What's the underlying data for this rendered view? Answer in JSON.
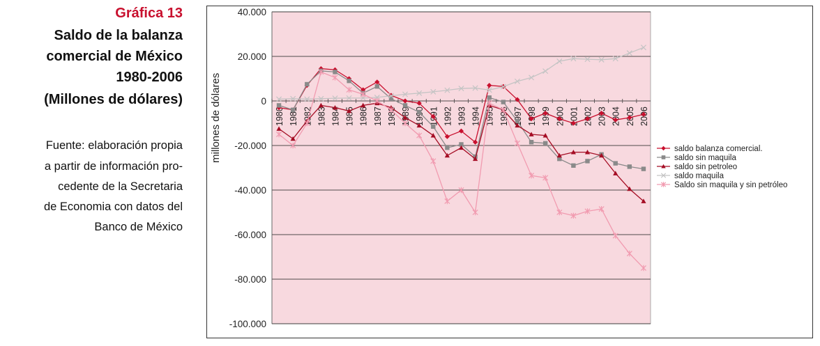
{
  "figure": {
    "label": "Gráfica 13",
    "title_lines": [
      "Saldo de la balanza",
      "comercial de México",
      "1980-2006",
      "(Millones de dólares)"
    ],
    "source_lines": [
      "Fuente: elaboración propia",
      "a partir de información pro-",
      "cedente de la Secretaria",
      "de Economia con datos del",
      "Banco de México"
    ]
  },
  "chart_data": {
    "type": "line",
    "title": "",
    "xlabel": "",
    "ylabel": "millones de dólares",
    "ylim": [
      -100000,
      40000
    ],
    "y_ticks": [
      40000,
      20000,
      0,
      -20000,
      -40000,
      -60000,
      -80000,
      -100000
    ],
    "y_tick_labels": [
      "40.000",
      "20.000",
      "0",
      "-20.000",
      "-40.000",
      "-60.000",
      "-80.000",
      "-100.000"
    ],
    "grid": true,
    "legend_position": "right",
    "plot_background": "#f8d9df",
    "categories": [
      "1980",
      "1981",
      "1982",
      "1983",
      "1984",
      "1985",
      "1986",
      "1987",
      "1988",
      "1989",
      "1990",
      "1991",
      "1992",
      "1993",
      "1994",
      "1995",
      "1996",
      "1997",
      "1998",
      "1999",
      "2000",
      "2001",
      "2002",
      "2003",
      "2004",
      "2005",
      "2006"
    ],
    "series": [
      {
        "name": "saldo balanza comercial.",
        "color": "#c8102e",
        "marker": "diamond",
        "values": [
          -3000,
          -4000,
          7000,
          14500,
          14000,
          10000,
          5000,
          8500,
          2500,
          0,
          -1000,
          -7000,
          -16000,
          -13500,
          -18500,
          7000,
          6500,
          600,
          -8000,
          -5500,
          -8000,
          -10000,
          -8000,
          -5500,
          -8500,
          -7500,
          -6000
        ]
      },
      {
        "name": "saldo sin maquila",
        "color": "#8a8a8a",
        "marker": "square",
        "values": [
          -2000,
          -4000,
          7500,
          13500,
          13000,
          9000,
          3500,
          6500,
          1000,
          -2000,
          -5000,
          -11500,
          -21000,
          -19500,
          -25000,
          1500,
          -500,
          -9000,
          -18500,
          -19000,
          -26000,
          -29000,
          -27000,
          -24000,
          -28000,
          -29500,
          -30500
        ]
      },
      {
        "name": "saldo sin petroleo",
        "color": "#a50d24",
        "marker": "triangle",
        "values": [
          -12500,
          -17000,
          -9000,
          -2000,
          -3000,
          -4500,
          -2000,
          -1000,
          -3000,
          -7500,
          -11000,
          -15500,
          -24500,
          -21000,
          -26000,
          -2000,
          -4000,
          -11000,
          -15000,
          -15500,
          -24500,
          -23000,
          -23000,
          -24500,
          -32500,
          -39500,
          -45000
        ]
      },
      {
        "name": "saldo maquila",
        "color": "#c4c4c4",
        "marker": "x",
        "values": [
          800,
          1000,
          800,
          1000,
          1200,
          1300,
          1300,
          1600,
          2300,
          3000,
          3500,
          4100,
          4800,
          5600,
          5800,
          4900,
          6400,
          8800,
          10500,
          13400,
          17800,
          19000,
          18700,
          18500,
          19000,
          21500,
          24000
        ]
      },
      {
        "name": "Saldo sin maquila y sin petróleo",
        "color": "#f19bb0",
        "marker": "asterisk",
        "values": [
          -15000,
          -20000,
          -10000,
          13000,
          10500,
          5000,
          3000,
          0,
          -4000,
          -10000,
          -15500,
          -27000,
          -45000,
          -40000,
          -50000,
          -1000,
          -4000,
          -19000,
          -33500,
          -34500,
          -50000,
          -51500,
          -49500,
          -48500,
          -60500,
          -68500,
          -75000
        ]
      }
    ]
  }
}
